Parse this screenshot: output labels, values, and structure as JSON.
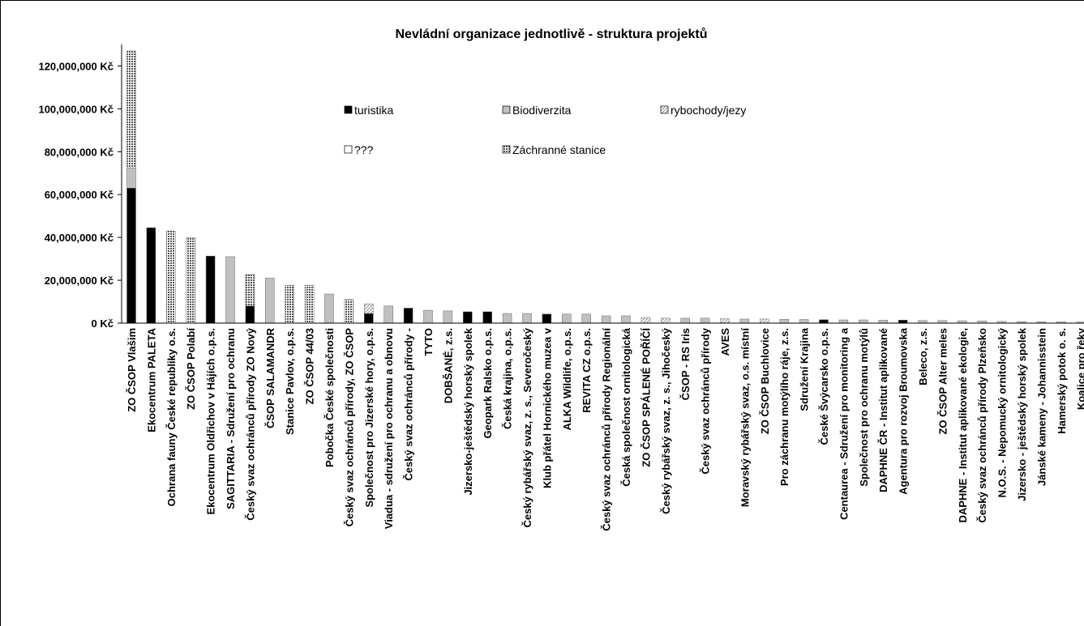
{
  "chart_data": {
    "type": "stacked_bar",
    "title": "Nevládní organizace jednotlivě - struktura projektů",
    "categories": [
      "ZO ČSOP Vlašim",
      "Ekocentrum PALETA",
      "Ochrana fauny České republiky o.s.",
      "ZO ČSOP Polabí",
      "Ekocentrum Oldřichov v Hájích o.p.s.",
      "SAGITTARIA - Sdružení pro ochranu",
      "Český svaz ochránců přírody ZO Nový",
      "ČSOP SALAMANDR",
      "Stanice Pavlov, o.p.s.",
      "ZO ČSOP 44/03",
      "Pobočka České společnosti",
      "Český svaz ochránců přírody, ZO ČSOP",
      "Společnost pro Jizerské hory, o.p.s.",
      "Viadua - sdružení pro ochranu a obnovu",
      "Český svaz ochránců přírody -",
      "TYTO",
      "DOBŠANÉ, z.s.",
      "Jizersko-ještědský horský spolek",
      "Geopark Ralsko o.p.s.",
      "Česká krajina, o.p.s.",
      "Český rybářský svaz, z. s., Severočeský",
      "Klub přátel Hornického muzea v",
      "ALKA Wildlife, o.p.s.",
      "REVITA CZ o.p.s.",
      "Český svaz ochránců přírody Regionální",
      "Česká společnost ornitologická",
      "ZO ČSOP SPÁLENÉ POŘÍČÍ",
      "Český rybářský svaz, z. s., Jihočeský",
      "ČSOP - RS Iris",
      "Český svaz ochránců přírody",
      "AVES",
      "Moravský rybářský svaz, o.s. místní",
      "ZO ČSOP Buchlovice",
      "Pro záchranu motýlího ráje, z.s.",
      "Sdružení Krajina",
      "České Švýcarsko o.p.s.",
      "Centaurea - Sdružení pro monitoring a",
      "Společnost pro ochranu motýlů",
      "DAPHNE ČR - Institut aplikované",
      "Agentura pro rozvoj Broumovska",
      "Beleco, z.s.",
      "ZO ČSOP Alter meles",
      "DAPHNE - Institut aplikované ekologie,",
      "Český svaz ochránců přírody Plzeňsko",
      "N.O.S. - Nepomucký ornitologický",
      "Jizersko - ještědský horský spolek",
      "Jánské kameny - Johannisstein",
      "Hamerský potok o. s.",
      "Koalice pro řeky"
    ],
    "series": [
      {
        "name": "turistika",
        "color": "#000000",
        "pattern": "solid",
        "values": [
          63000000,
          44500000,
          0,
          0,
          31300000,
          0,
          8000000,
          0,
          0,
          0,
          0,
          0,
          4500000,
          0,
          7000000,
          0,
          0,
          5300000,
          5300000,
          0,
          0,
          4200000,
          0,
          0,
          0,
          0,
          0,
          0,
          0,
          0,
          0,
          0,
          0,
          0,
          0,
          1600000,
          0,
          0,
          0,
          1400000,
          0,
          0,
          0,
          0,
          0,
          0,
          0,
          0,
          0
        ]
      },
      {
        "name": "Biodiverzita",
        "color": "#c0c0c0",
        "pattern": "solid",
        "values": [
          9500000,
          0,
          0,
          0,
          0,
          31000000,
          0,
          21000000,
          0,
          0,
          13600000,
          0,
          0,
          8000000,
          0,
          6000000,
          5700000,
          0,
          0,
          4500000,
          4500000,
          0,
          4200000,
          4200000,
          3400000,
          3400000,
          0,
          0,
          2300000,
          2300000,
          0,
          1900000,
          0,
          1800000,
          1700000,
          0,
          1500000,
          1500000,
          1400000,
          0,
          1200000,
          1200000,
          1100000,
          1000000,
          800000,
          700000,
          600000,
          600000,
          500000
        ]
      },
      {
        "name": "rybochody/jezy",
        "color": "#d9d9d9",
        "pattern": "diagonal",
        "values": [
          0,
          0,
          0,
          0,
          0,
          0,
          0,
          0,
          0,
          0,
          0,
          0,
          4500000,
          0,
          0,
          0,
          0,
          0,
          0,
          0,
          0,
          0,
          0,
          0,
          0,
          0,
          2600000,
          2300000,
          0,
          0,
          2000000,
          0,
          1900000,
          0,
          0,
          0,
          0,
          0,
          0,
          0,
          0,
          0,
          0,
          0,
          0,
          0,
          0,
          0,
          0
        ]
      },
      {
        "name": "???",
        "color": "#ffffff",
        "pattern": "solid",
        "values": [
          0,
          0,
          0,
          0,
          0,
          0,
          0,
          0,
          0,
          0,
          0,
          0,
          0,
          0,
          0,
          0,
          0,
          0,
          0,
          0,
          0,
          0,
          0,
          0,
          0,
          0,
          0,
          0,
          0,
          0,
          0,
          0,
          0,
          0,
          0,
          0,
          0,
          0,
          0,
          0,
          0,
          0,
          0,
          0,
          0,
          0,
          0,
          0,
          0
        ]
      },
      {
        "name": "Záchranné stanice",
        "color": "#808080",
        "pattern": "crosshatch",
        "values": [
          54500000,
          0,
          43000000,
          40000000,
          0,
          0,
          14700000,
          0,
          17700000,
          17700000,
          0,
          11000000,
          0,
          0,
          0,
          0,
          0,
          0,
          0,
          0,
          0,
          0,
          0,
          0,
          0,
          0,
          0,
          0,
          0,
          0,
          0,
          0,
          0,
          0,
          0,
          0,
          0,
          0,
          0,
          0,
          0,
          0,
          0,
          0,
          0,
          0,
          0,
          0,
          0
        ]
      }
    ],
    "ylim": [
      0,
      130000000
    ],
    "yticks": [
      {
        "value": 0,
        "label": "0 Kč"
      },
      {
        "value": 20000000,
        "label": "20,000,000 Kč"
      },
      {
        "value": 40000000,
        "label": "40,000,000 Kč"
      },
      {
        "value": 60000000,
        "label": "60,000,000 Kč"
      },
      {
        "value": 80000000,
        "label": "80,000,000 Kč"
      },
      {
        "value": 100000000,
        "label": "100,000,000 Kč"
      },
      {
        "value": 120000000,
        "label": "120,000,000 Kč"
      }
    ],
    "grid": false,
    "legend": "top"
  }
}
